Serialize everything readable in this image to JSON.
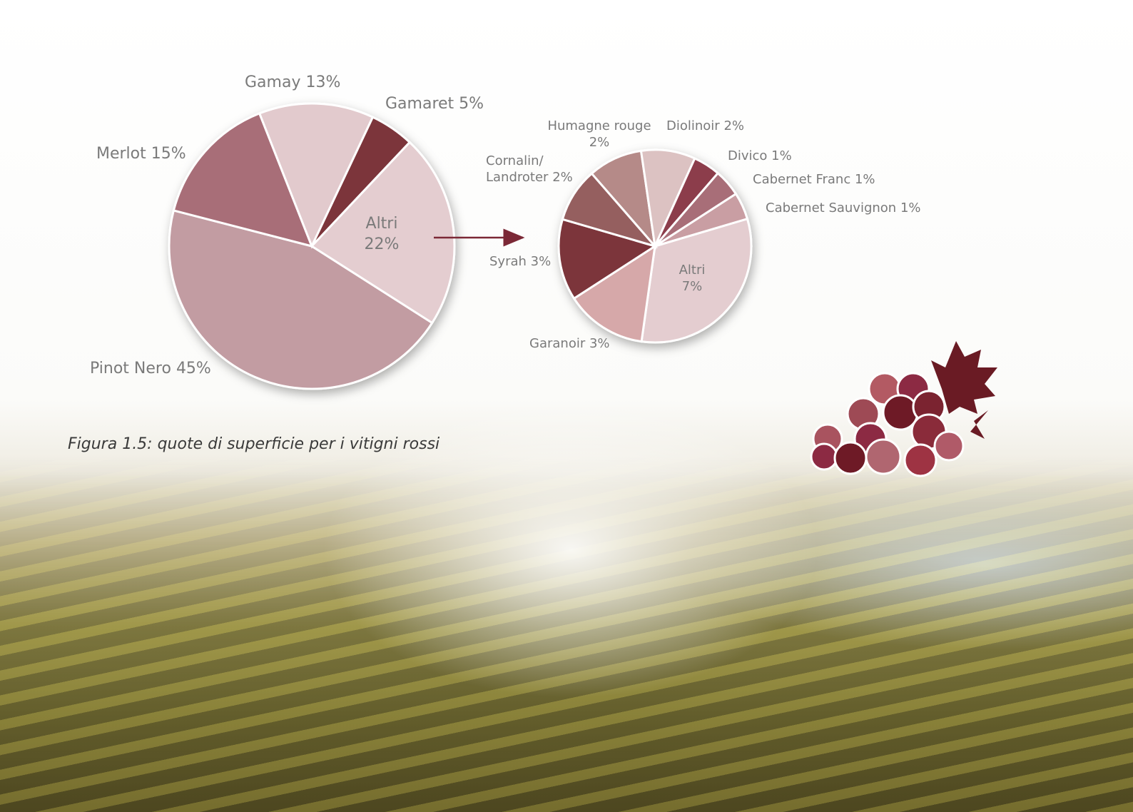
{
  "chart_data": [
    {
      "type": "pie",
      "categories": [
        "Pinot Nero",
        "Merlot",
        "Gamay",
        "Gamaret",
        "Altri"
      ],
      "values": [
        45,
        15,
        13,
        5,
        22
      ],
      "value_labels": [
        "45%",
        "15%",
        "13%",
        "5%",
        "22%"
      ],
      "colors": [
        "#c29ca2",
        "#a86e78",
        "#e2cacd",
        "#7b363a",
        "#e4cdd0"
      ]
    },
    {
      "type": "pie",
      "categories": [
        "Altri",
        "Garanoir",
        "Syrah",
        "Cornalin/ Landroter",
        "Humagne rouge",
        "Diolinoir",
        "Divico",
        "Cabernet Franc",
        "Cabernet Sauvignon"
      ],
      "values": [
        7,
        3,
        3,
        2,
        2,
        2,
        1,
        1,
        1
      ],
      "value_labels": [
        "7%",
        "3%",
        "3%",
        "2%",
        "2%",
        "2%",
        "1%",
        "1%",
        "1%"
      ],
      "colors": [
        "#e4cdd0",
        "#d6a8a9",
        "#7b363a",
        "#955e5f",
        "#b58a88",
        "#dcc2c2",
        "#8c3c4c",
        "#a86e78",
        "#c99ea3"
      ]
    }
  ],
  "caption": "Figura 1.5: quote di superficie per i vitigni rossi"
}
